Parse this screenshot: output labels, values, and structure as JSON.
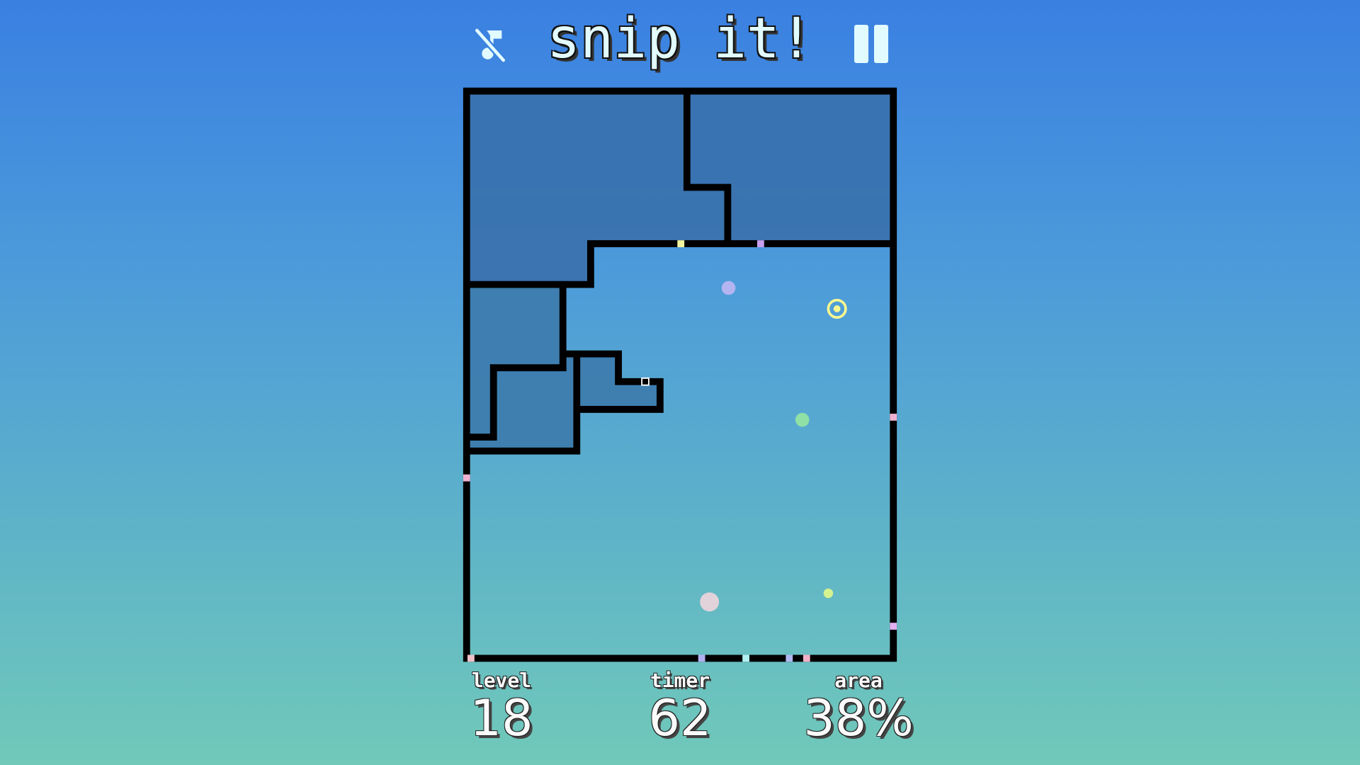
{
  "header": {
    "title": "snip it!",
    "music_icon": "music-off-icon",
    "pause_icon": "pause-icon"
  },
  "stats": [
    {
      "label": "level",
      "value": "18"
    },
    {
      "label": "timer",
      "value": "62"
    },
    {
      "label": "area",
      "value": "38%"
    }
  ],
  "colors": {
    "wall": "#000000",
    "claimed": "#3a72ae",
    "ball_lavender": "#b4b4f0",
    "ball_green": "#8fe0a6",
    "ball_pink": "#e2d2da",
    "ball_lime": "#d4f290",
    "target": "#f8f890",
    "text": "#e2fbff"
  }
}
